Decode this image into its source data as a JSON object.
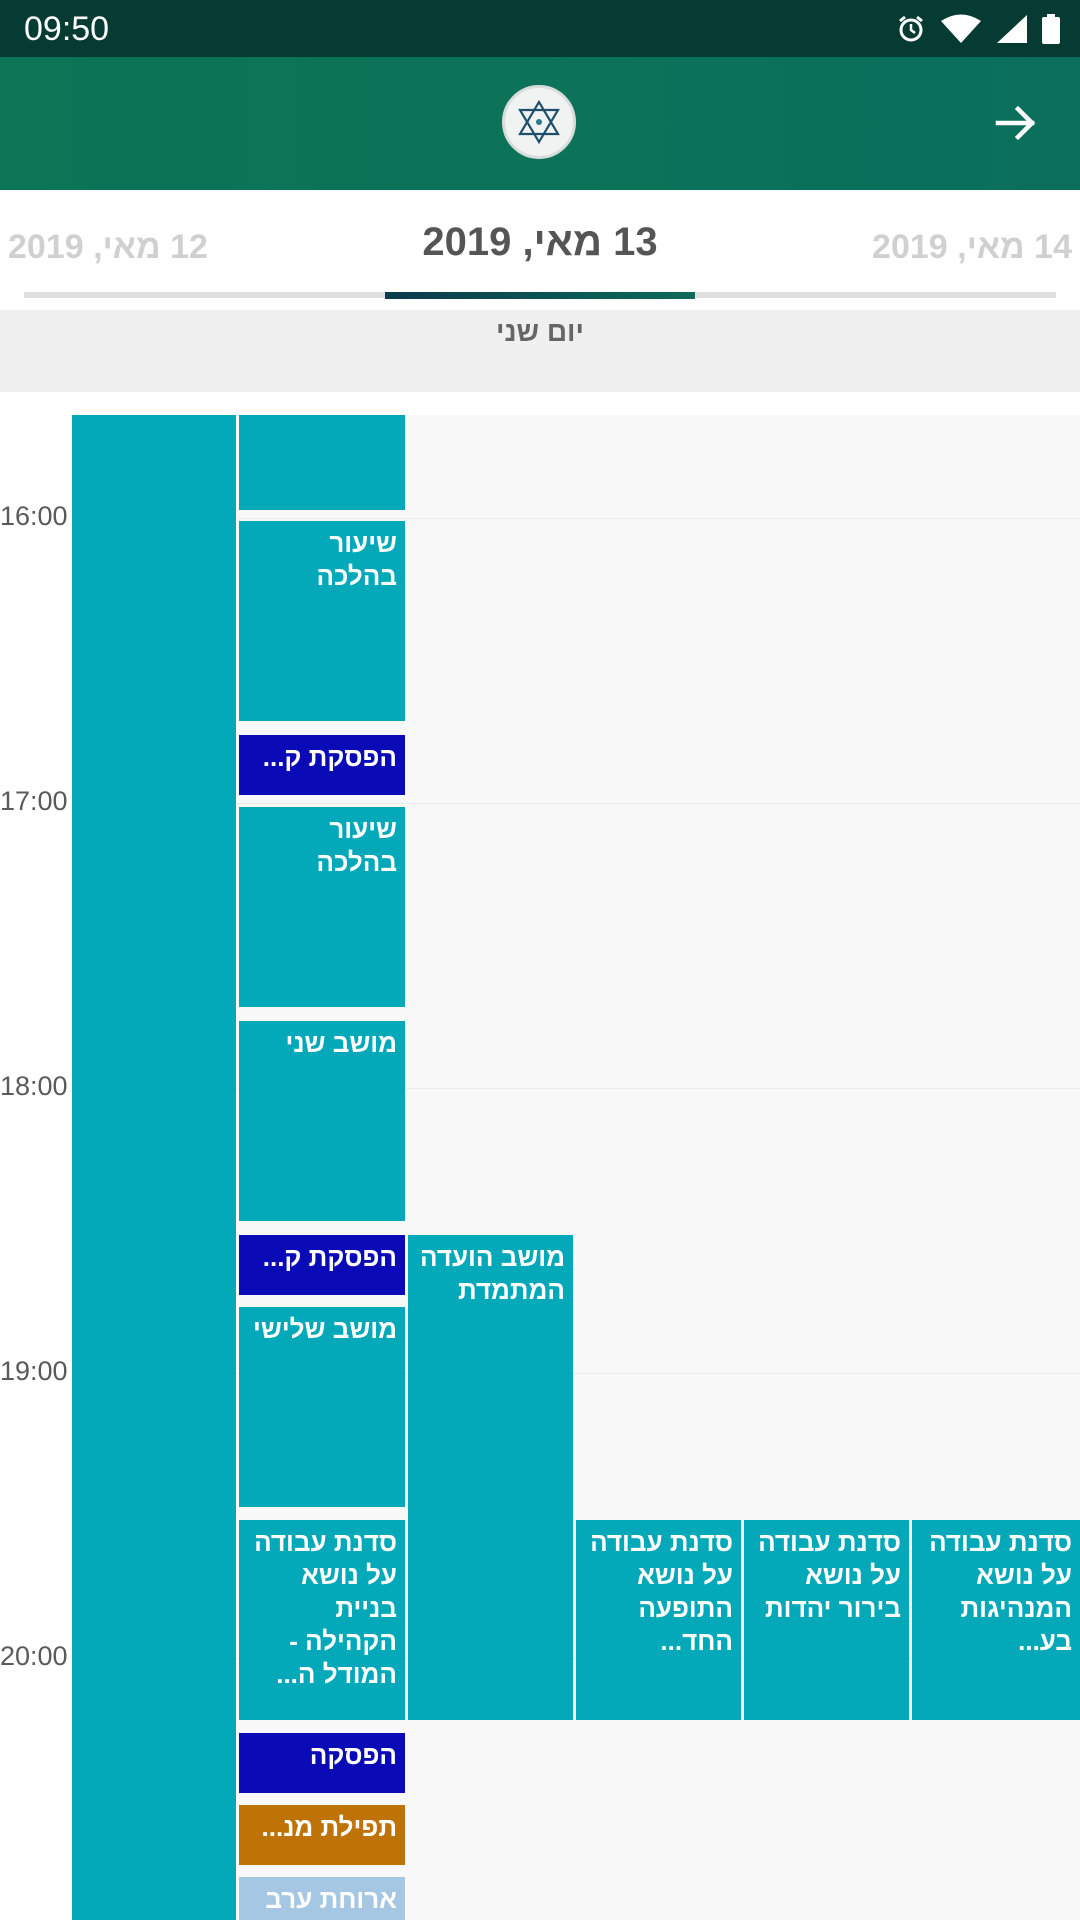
{
  "status_bar": {
    "time": "09:50",
    "icons": [
      "alarm-icon",
      "wifi-icon",
      "signal-icon",
      "battery-icon"
    ]
  },
  "app_bar": {
    "logo_icon": "star-of-david-logo",
    "back_icon": "arrow-right-icon"
  },
  "date_tabs": {
    "prev": "12 מאי, 2019",
    "current": "13 מאי, 2019",
    "next": "14 מאי, 2019"
  },
  "day_name": "יום שני",
  "times": [
    "16:00",
    "17:00",
    "18:00",
    "19:00",
    "20:00"
  ],
  "events": {
    "e1": "",
    "e2": "שיעור בהלכה",
    "e3": "הפסקת ק...",
    "e4": "שיעור בהלכה",
    "e5": "מושב שני",
    "e6": "הפסקת ק...",
    "e7": "מושב שלישי",
    "e8": "מושב הועדה המתמדת",
    "e9": "סדנת עבודה על נושא בניית הקהילה - המודל ה...",
    "e10": "סדנת עבודה על נושא התופעה החד...",
    "e11": "סדנת עבודה על נושא בירור יהדות",
    "e12": "סדנת עבודה על נושא המנהיגות בע...",
    "e13": "הפסקה",
    "e14": "תפילת מנ...",
    "e15": "ארוחת ערב"
  },
  "colors": {
    "teal": "#03a9b8",
    "navy": "#0a0ab7",
    "orange": "#bf7205",
    "light_blue": "#a5c7e4",
    "app_bar": "#0c7555",
    "status_bar": "#053b32"
  }
}
